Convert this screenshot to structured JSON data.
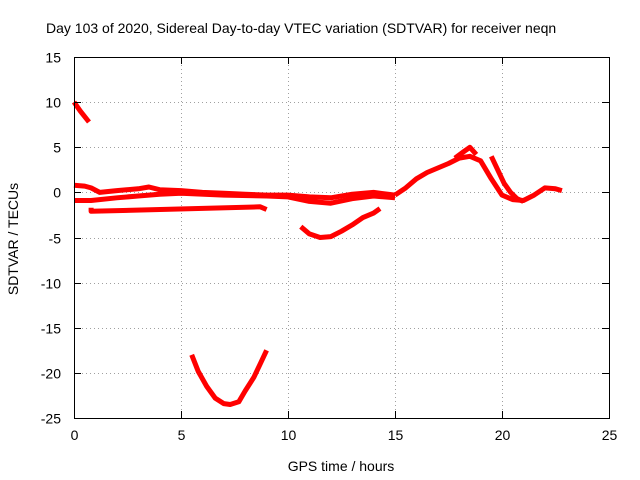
{
  "chart_data": {
    "type": "line",
    "title": "Day 103 of 2020, Sidereal Day-to-day VTEC variation (SDTVAR) for receiver neqn",
    "xlabel": "GPS time / hours",
    "ylabel": "SDTVAR / TECUs",
    "xlim": [
      0,
      25
    ],
    "ylim": [
      -25,
      15
    ],
    "xticks": [
      0,
      5,
      10,
      15,
      20,
      25
    ],
    "yticks": [
      -25,
      -20,
      -15,
      -10,
      -5,
      0,
      5,
      10,
      15
    ],
    "grid": true,
    "color": "#ff0000",
    "series": [
      {
        "name": "early-high-arc",
        "x": [
          0.0,
          0.3,
          0.7
        ],
        "y": [
          10.0,
          9.0,
          7.8
        ]
      },
      {
        "name": "main-near-zero",
        "x": [
          0.0,
          0.5,
          0.8,
          1.2,
          2.0,
          3.0,
          3.5,
          4.0,
          5.0,
          6.0,
          7.0,
          8.0,
          9.0,
          10.0,
          11.0,
          12.0,
          13.0,
          14.0,
          15.0
        ],
        "y": [
          0.8,
          0.7,
          0.5,
          0.0,
          0.2,
          0.4,
          0.6,
          0.3,
          0.2,
          0.0,
          -0.1,
          -0.2,
          -0.3,
          -0.3,
          -0.5,
          -0.6,
          -0.2,
          0.0,
          -0.3
        ]
      },
      {
        "name": "secondary-near-zero",
        "x": [
          0.0,
          0.8,
          2.0,
          3.0,
          4.0,
          5.0,
          7.0,
          9.0,
          10.0,
          11.0,
          12.0,
          13.0,
          14.0,
          15.0
        ],
        "y": [
          -0.9,
          -0.9,
          -0.6,
          -0.4,
          -0.2,
          -0.1,
          -0.3,
          -0.4,
          -0.5,
          -1.0,
          -1.2,
          -0.7,
          -0.4,
          -0.6
        ]
      },
      {
        "name": "short-dips",
        "x": [
          0.8,
          0.8,
          8.7,
          9.0
        ],
        "y": [
          -1.7,
          -2.1,
          -1.6,
          -1.9
        ]
      },
      {
        "name": "deep-trough",
        "x": [
          5.5,
          5.8,
          6.2,
          6.6,
          7.0,
          7.3,
          7.7,
          8.0,
          8.4,
          8.7,
          9.0
        ],
        "y": [
          -18.0,
          -19.8,
          -21.5,
          -22.8,
          -23.4,
          -23.5,
          -23.2,
          -22.0,
          -20.5,
          -19.0,
          -17.5
        ]
      },
      {
        "name": "mid-trough",
        "x": [
          10.6,
          11.0,
          11.5,
          12.0,
          12.5,
          13.0,
          13.5,
          14.0,
          14.3
        ],
        "y": [
          -3.8,
          -4.6,
          -5.0,
          -4.9,
          -4.3,
          -3.6,
          -2.8,
          -2.3,
          -1.8
        ]
      },
      {
        "name": "afternoon-rise",
        "x": [
          15.0,
          15.5,
          16.0,
          16.5,
          17.0,
          17.5,
          18.0,
          18.5,
          19.0,
          19.5,
          20.0,
          20.5,
          21.0,
          21.5,
          22.0,
          22.5,
          22.8
        ],
        "y": [
          -0.3,
          0.5,
          1.5,
          2.2,
          2.7,
          3.2,
          3.8,
          4.0,
          3.5,
          1.5,
          -0.3,
          -0.8,
          -0.9,
          -0.3,
          0.5,
          0.4,
          0.2
        ]
      },
      {
        "name": "afternoon-peak",
        "x": [
          17.8,
          18.2,
          18.5,
          18.8
        ],
        "y": [
          3.8,
          4.5,
          5.0,
          4.2
        ]
      },
      {
        "name": "late-descent",
        "x": [
          19.5,
          19.8,
          20.1,
          20.4,
          20.7,
          21.0
        ],
        "y": [
          4.0,
          2.5,
          1.0,
          0.0,
          -0.7,
          -1.0
        ]
      }
    ]
  }
}
